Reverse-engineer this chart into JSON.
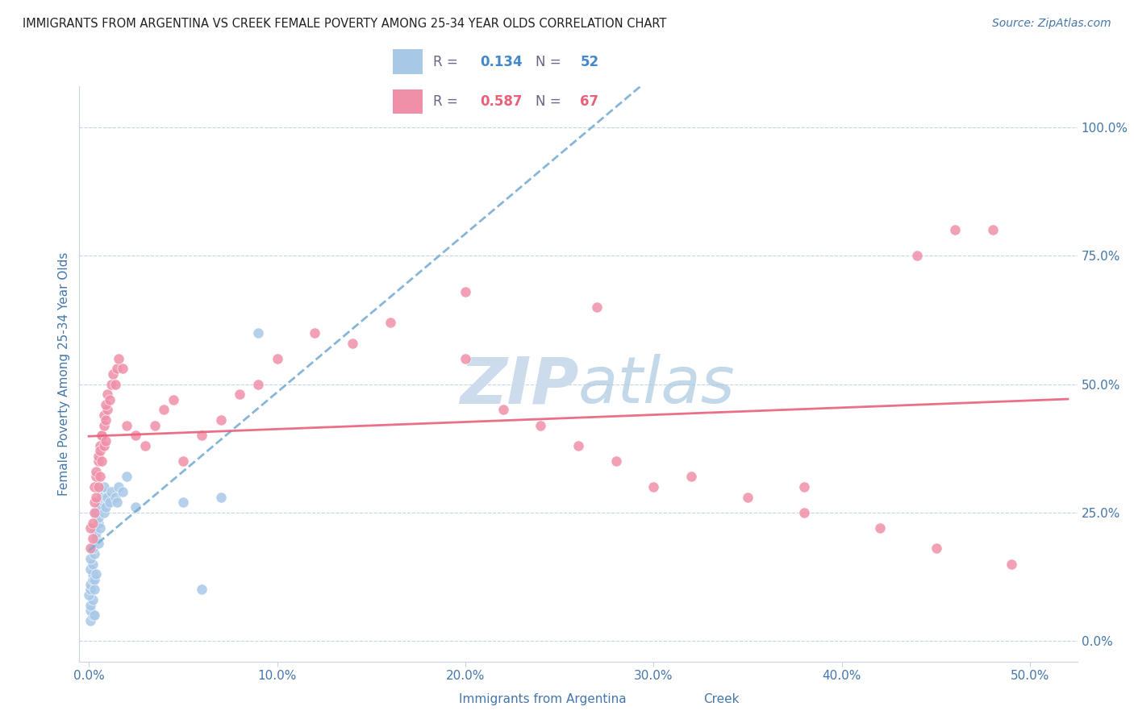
{
  "title": "IMMIGRANTS FROM ARGENTINA VS CREEK FEMALE POVERTY AMONG 25-34 YEAR OLDS CORRELATION CHART",
  "source": "Source: ZipAtlas.com",
  "ylabel_label": "Female Poverty Among 25-34 Year Olds",
  "xlabel_ticks": [
    "0.0%",
    "10.0%",
    "20.0%",
    "30.0%",
    "40.0%",
    "50.0%"
  ],
  "xlabel_vals": [
    0.0,
    0.1,
    0.2,
    0.3,
    0.4,
    0.5
  ],
  "ylabel_ticks": [
    "0.0%",
    "25.0%",
    "50.0%",
    "75.0%",
    "100.0%"
  ],
  "ylabel_vals": [
    0.0,
    0.25,
    0.5,
    0.75,
    1.0
  ],
  "xlim": [
    -0.005,
    0.525
  ],
  "ylim": [
    -0.04,
    1.08
  ],
  "argentina_R": "0.134",
  "argentina_N": "52",
  "creek_R": "0.587",
  "creek_N": "67",
  "argentina_color": "#a8c8e8",
  "creek_color": "#f090a8",
  "argentina_line_color": "#7aaed4",
  "creek_line_color": "#e8607a",
  "legend_val_blue": "#4488cc",
  "legend_val_pink": "#e8607a",
  "watermark_color": "#ccdcec",
  "grid_color": "#c8d4e4",
  "tick_color": "#4477aa",
  "title_color": "#222222",
  "argentina_x": [
    0.001,
    0.002,
    0.001,
    0.003,
    0.001,
    0.002,
    0.0,
    0.001,
    0.001,
    0.002,
    0.003,
    0.002,
    0.001,
    0.003,
    0.002,
    0.001,
    0.004,
    0.003,
    0.002,
    0.004,
    0.003,
    0.005,
    0.004,
    0.005,
    0.006,
    0.004,
    0.005,
    0.006,
    0.007,
    0.005,
    0.006,
    0.007,
    0.008,
    0.007,
    0.008,
    0.009,
    0.008,
    0.01,
    0.009,
    0.01,
    0.011,
    0.012,
    0.014,
    0.015,
    0.016,
    0.018,
    0.02,
    0.025,
    0.05,
    0.07,
    0.06,
    0.09
  ],
  "argentina_y": [
    0.04,
    0.05,
    0.06,
    0.05,
    0.07,
    0.08,
    0.09,
    0.1,
    0.11,
    0.12,
    0.1,
    0.13,
    0.14,
    0.12,
    0.15,
    0.16,
    0.13,
    0.17,
    0.18,
    0.2,
    0.22,
    0.19,
    0.21,
    0.23,
    0.22,
    0.25,
    0.24,
    0.26,
    0.28,
    0.27,
    0.26,
    0.29,
    0.27,
    0.28,
    0.3,
    0.28,
    0.25,
    0.27,
    0.26,
    0.28,
    0.27,
    0.29,
    0.28,
    0.27,
    0.3,
    0.29,
    0.32,
    0.26,
    0.27,
    0.28,
    0.1,
    0.6
  ],
  "creek_x": [
    0.001,
    0.002,
    0.001,
    0.003,
    0.002,
    0.003,
    0.004,
    0.003,
    0.004,
    0.005,
    0.004,
    0.005,
    0.006,
    0.005,
    0.006,
    0.007,
    0.006,
    0.007,
    0.008,
    0.007,
    0.008,
    0.009,
    0.008,
    0.009,
    0.01,
    0.009,
    0.01,
    0.011,
    0.012,
    0.013,
    0.014,
    0.015,
    0.016,
    0.018,
    0.02,
    0.025,
    0.03,
    0.035,
    0.04,
    0.045,
    0.05,
    0.06,
    0.07,
    0.08,
    0.09,
    0.1,
    0.12,
    0.14,
    0.16,
    0.2,
    0.22,
    0.24,
    0.26,
    0.28,
    0.3,
    0.32,
    0.35,
    0.38,
    0.42,
    0.45,
    0.46,
    0.48,
    0.49,
    0.2,
    0.27,
    0.38,
    0.44
  ],
  "creek_y": [
    0.18,
    0.2,
    0.22,
    0.25,
    0.23,
    0.27,
    0.28,
    0.3,
    0.32,
    0.3,
    0.33,
    0.35,
    0.32,
    0.36,
    0.38,
    0.35,
    0.37,
    0.4,
    0.38,
    0.4,
    0.42,
    0.39,
    0.44,
    0.43,
    0.45,
    0.46,
    0.48,
    0.47,
    0.5,
    0.52,
    0.5,
    0.53,
    0.55,
    0.53,
    0.42,
    0.4,
    0.38,
    0.42,
    0.45,
    0.47,
    0.35,
    0.4,
    0.43,
    0.48,
    0.5,
    0.55,
    0.6,
    0.58,
    0.62,
    0.55,
    0.45,
    0.42,
    0.38,
    0.35,
    0.3,
    0.32,
    0.28,
    0.25,
    0.22,
    0.18,
    0.8,
    0.8,
    0.15,
    0.68,
    0.65,
    0.3,
    0.75
  ]
}
